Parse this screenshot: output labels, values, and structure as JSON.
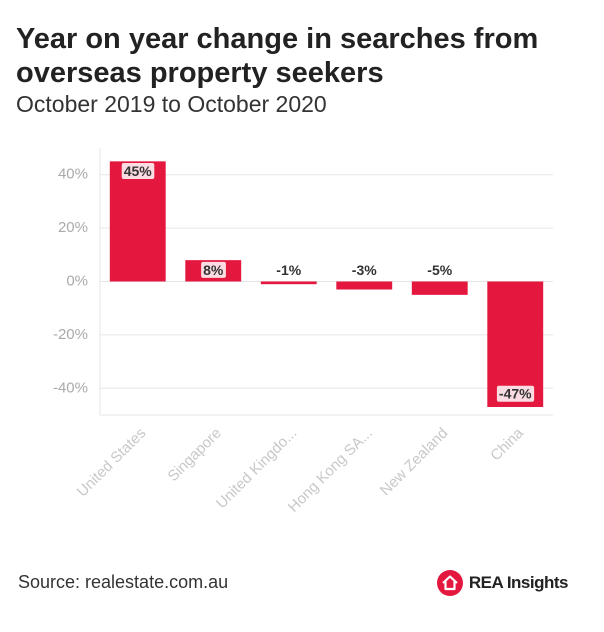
{
  "chart_data": {
    "type": "bar",
    "title": "Year on year change in searches from overseas property seekers",
    "subtitle": "October 2019 to October 2020",
    "categories": [
      "United States",
      "Singapore",
      "United Kingdo...",
      "Hong Kong SA...",
      "New Zealand",
      "China"
    ],
    "values": [
      45,
      8,
      -1,
      -3,
      -5,
      -47
    ],
    "value_labels": [
      "45%",
      "8%",
      "-1%",
      "-3%",
      "-5%",
      "-47%"
    ],
    "color": "#e4173e",
    "ylim": [
      -50,
      50
    ],
    "yticks": [
      {
        "value": -40,
        "label": "-40%"
      },
      {
        "value": -20,
        "label": "-20%"
      },
      {
        "value": 0,
        "label": "0%"
      },
      {
        "value": 20,
        "label": "20%"
      },
      {
        "value": 40,
        "label": "40%"
      }
    ],
    "grid": true,
    "source": "Source: realestate.com.au",
    "brand": "REA Insights"
  }
}
